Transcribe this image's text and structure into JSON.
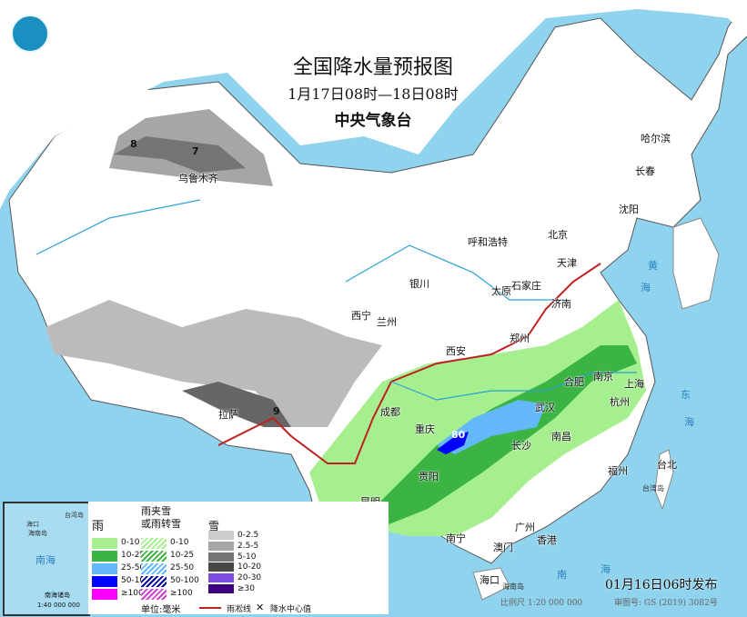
{
  "header": {
    "title": "全国降水量预报图",
    "period": "1月17日08时—18日08时",
    "issuer": "中央气象台",
    "logo": "cma-logo"
  },
  "cities": [
    "乌鲁木齐",
    "哈尔滨",
    "长春",
    "沈阳",
    "北京",
    "天津",
    "呼和浩特",
    "石家庄",
    "太原",
    "济南",
    "银川",
    "西宁",
    "兰州",
    "郑州",
    "西安",
    "合肥",
    "南京",
    "上海",
    "杭州",
    "武汉",
    "成都",
    "重庆",
    "长沙",
    "南昌",
    "拉萨",
    "贵阳",
    "福州",
    "台北",
    "昆明",
    "南宁",
    "广州",
    "澳门",
    "香港",
    "海口"
  ],
  "centers": [
    "8",
    "7",
    "9",
    "80"
  ],
  "legend": {
    "rain": {
      "title": "雨",
      "items": [
        {
          "label": "0-10",
          "color": "#a6ef8f"
        },
        {
          "label": "10-25",
          "color": "#3cb444"
        },
        {
          "label": "25-50",
          "color": "#63b8f9"
        },
        {
          "label": "50-100",
          "color": "#0000fe"
        },
        {
          "label": "≥100",
          "color": "#fa00fa"
        }
      ]
    },
    "mixed": {
      "title1": "雨夹雪",
      "title2": "或雨转雪",
      "items": [
        {
          "label": "0-10",
          "color": "#a6ef8f"
        },
        {
          "label": "10-25",
          "color": "#3cb444"
        },
        {
          "label": "25-50",
          "color": "#63b8f9"
        },
        {
          "label": "50-100",
          "color": "#0000a0"
        },
        {
          "label": "≥100",
          "color": "#d040d0"
        }
      ]
    },
    "snow": {
      "title": "雪",
      "items": [
        {
          "label": "0-2.5",
          "color": "#cccccc"
        },
        {
          "label": "2.5-5",
          "color": "#a6a6a6"
        },
        {
          "label": "5-10",
          "color": "#747474"
        },
        {
          "label": "10-20",
          "color": "#474747"
        },
        {
          "label": "20-30",
          "color": "#7d4ce0"
        },
        {
          "label": "≥30",
          "color": "#3c0080"
        }
      ]
    },
    "unit": "单位:毫米",
    "freeze_line": "雨凇线",
    "center_value": "降水中心值"
  },
  "inset": {
    "sea": "南海",
    "label": "南海诸岛",
    "scale": "1:40 000 000",
    "places": [
      "海口",
      "海南岛",
      "台湾岛"
    ]
  },
  "footer": {
    "issued": "01月16日06时发布",
    "scale": "比例尺 1:20 000 000",
    "approval": "审图号: GS (2019) 3082号"
  },
  "sea_labels": [
    "南",
    "海",
    "黄",
    "海",
    "东",
    "海",
    "台湾岛",
    "海南岛"
  ]
}
